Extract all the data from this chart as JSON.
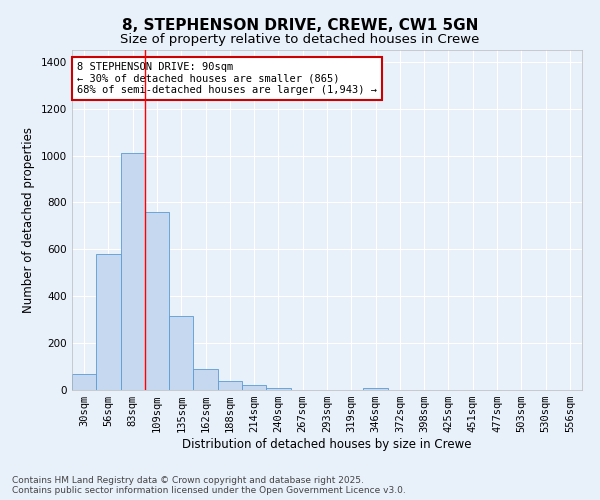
{
  "title": "8, STEPHENSON DRIVE, CREWE, CW1 5GN",
  "subtitle": "Size of property relative to detached houses in Crewe",
  "xlabel": "Distribution of detached houses by size in Crewe",
  "ylabel": "Number of detached properties",
  "bar_labels": [
    "30sqm",
    "56sqm",
    "83sqm",
    "109sqm",
    "135sqm",
    "162sqm",
    "188sqm",
    "214sqm",
    "240sqm",
    "267sqm",
    "293sqm",
    "319sqm",
    "346sqm",
    "372sqm",
    "398sqm",
    "425sqm",
    "451sqm",
    "477sqm",
    "503sqm",
    "530sqm",
    "556sqm"
  ],
  "bar_heights": [
    70,
    580,
    1010,
    760,
    315,
    90,
    40,
    20,
    10,
    0,
    0,
    0,
    10,
    0,
    0,
    0,
    0,
    0,
    0,
    0,
    0
  ],
  "bar_color": "#c5d8f0",
  "bar_edge_color": "#5b9bd5",
  "ylim": [
    0,
    1450
  ],
  "yticks": [
    0,
    200,
    400,
    600,
    800,
    1000,
    1200,
    1400
  ],
  "red_line_x": 2.5,
  "annotation_text": "8 STEPHENSON DRIVE: 90sqm\n← 30% of detached houses are smaller (865)\n68% of semi-detached houses are larger (1,943) →",
  "annotation_box_color": "#ffffff",
  "annotation_border_color": "#cc0000",
  "footer_text": "Contains HM Land Registry data © Crown copyright and database right 2025.\nContains public sector information licensed under the Open Government Licence v3.0.",
  "bg_color": "#e8f0fa",
  "grid_color": "#ffffff",
  "title_fontsize": 11,
  "subtitle_fontsize": 9.5,
  "axis_label_fontsize": 8.5,
  "tick_fontsize": 7.5,
  "annotation_fontsize": 7.5,
  "footer_fontsize": 6.5
}
